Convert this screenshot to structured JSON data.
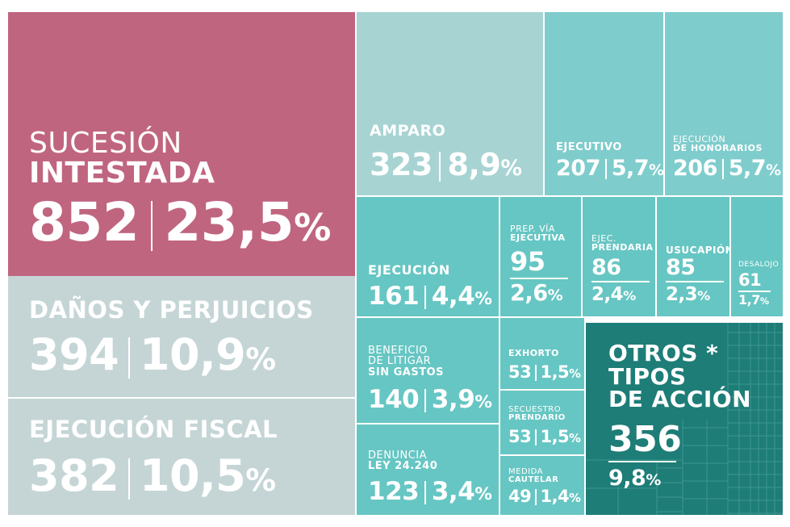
{
  "chart_data": {
    "type": "treemap",
    "items": [
      {
        "id": "sucesion",
        "label_light": "SUCESIÓN",
        "label": "INTESTADA",
        "value": "852",
        "percent": "23,5",
        "color": "#c0657f"
      },
      {
        "id": "danos",
        "label": "DAÑOS Y PERJUICIOS",
        "value": "394",
        "percent": "10,9",
        "color": "#c5d5d6"
      },
      {
        "id": "ejec_fiscal",
        "label": "EJECUCIÓN FISCAL",
        "value": "382",
        "percent": "10,5",
        "color": "#c5d5d6"
      },
      {
        "id": "amparo",
        "label": "AMPARO",
        "value": "323",
        "percent": "8,9",
        "color": "#a8d3d3"
      },
      {
        "id": "ejecutivo",
        "label": "EJECUTIVO",
        "value": "207",
        "percent": "5,7",
        "color": "#7fcccc"
      },
      {
        "id": "ejec_honorarios",
        "label_light": "EJECUCIÓN",
        "label": "DE HONORARIOS",
        "value": "206",
        "percent": "5,7",
        "color": "#7fcccc"
      },
      {
        "id": "ejecucion",
        "label": "EJECUCIÓN",
        "value": "161",
        "percent": "4,4",
        "color": "#66c6c3"
      },
      {
        "id": "prep_via",
        "label_light": "PREP. VÍA",
        "label": "EJECUTIVA",
        "value": "95",
        "percent": "2,6",
        "color": "#66c6c3"
      },
      {
        "id": "ejec_prendaria",
        "label_light": "EJEC.",
        "label": "PRENDARIA",
        "value": "86",
        "percent": "2,4",
        "color": "#66c6c3"
      },
      {
        "id": "usucapion",
        "label": "USUCAPIÓN",
        "value": "85",
        "percent": "2,3",
        "color": "#66c6c3"
      },
      {
        "id": "desalojo",
        "label_light": "DESALOJO",
        "value": "61",
        "percent": "1,7",
        "color": "#66c6c3"
      },
      {
        "id": "beneficio",
        "label_light": "BENEFICIO\nDE LITIGAR",
        "label": "SIN GASTOS",
        "value": "140",
        "percent": "3,9",
        "color": "#66c6c3"
      },
      {
        "id": "exhorto",
        "label": "EXHORTO",
        "value": "53",
        "percent": "1,5",
        "color": "#66c6c3"
      },
      {
        "id": "secuestro",
        "label_light": "SECUESTRO",
        "label": "PRENDARIO",
        "value": "53",
        "percent": "1,5",
        "color": "#66c6c3"
      },
      {
        "id": "denuncia",
        "label_light": "DENUNCIA",
        "label": "LEY 24.240",
        "value": "123",
        "percent": "3,4",
        "color": "#66c6c3"
      },
      {
        "id": "medida",
        "label_light": "MEDIDA",
        "label": "CAUTELAR",
        "value": "49",
        "percent": "1,4",
        "color": "#66c6c3"
      },
      {
        "id": "otros",
        "label": "OTROS *\nTIPOS\nDE ACCIÓN",
        "value": "356",
        "percent": "9,8",
        "color": "#1e7d77"
      }
    ],
    "percent_suffix": "%"
  }
}
